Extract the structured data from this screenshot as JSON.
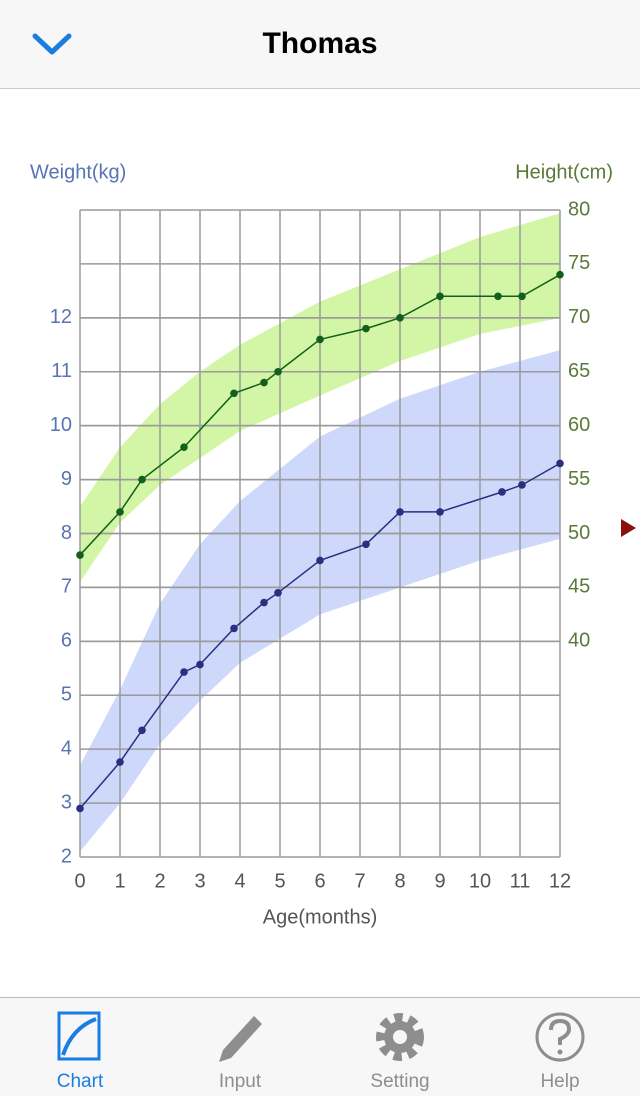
{
  "header": {
    "title": "Thomas"
  },
  "chart_data": {
    "type": "line",
    "xlabel": "Age(months)",
    "ylabel": "Weight(kg)",
    "y2label": "Height(cm)",
    "xlim": [
      0,
      12
    ],
    "xticks": [
      0,
      1,
      2,
      3,
      4,
      5,
      6,
      7,
      8,
      9,
      10,
      11,
      12
    ],
    "ylim": [
      2,
      14
    ],
    "yticks": [
      2,
      3,
      4,
      5,
      6,
      7,
      8,
      9,
      10,
      11,
      12
    ],
    "y2lim": [
      20,
      80
    ],
    "y2ticks": [
      40,
      45,
      50,
      55,
      60,
      65,
      70,
      75,
      80
    ],
    "grid": true,
    "bands": [
      {
        "axis": "y",
        "color": "#cdd8fb",
        "x": [
          0,
          1,
          2,
          3,
          4,
          6,
          8,
          10,
          12
        ],
        "upper": [
          3.7,
          5.1,
          6.7,
          7.8,
          8.6,
          9.8,
          10.5,
          11.0,
          11.4
        ],
        "lower": [
          2.1,
          3.0,
          4.1,
          4.9,
          5.6,
          6.5,
          7.0,
          7.5,
          7.9
        ]
      },
      {
        "axis": "y2",
        "color": "#d3f6a6",
        "x": [
          0,
          1,
          2,
          3,
          4,
          6,
          8,
          10,
          12
        ],
        "upper": [
          52.5,
          58,
          62,
          65,
          67.5,
          71.5,
          74.5,
          77.5,
          79.7
        ],
        "lower": [
          45.5,
          51,
          54.5,
          57,
          59.5,
          62.8,
          66,
          68.5,
          70
        ]
      }
    ],
    "series": [
      {
        "axis": "y",
        "color": "#2b2f80",
        "x": [
          0,
          1,
          1.55,
          2.6,
          3,
          3.85,
          4.6,
          4.95,
          6,
          7.15,
          8,
          9,
          10.55,
          11.05,
          12
        ],
        "values": [
          2.9,
          3.76,
          4.35,
          5.43,
          5.57,
          6.24,
          6.72,
          6.9,
          7.5,
          7.8,
          8.4,
          8.4,
          8.77,
          8.9,
          9.3
        ]
      },
      {
        "axis": "y2",
        "color": "#13601a",
        "x": [
          0,
          1,
          1.55,
          2.6,
          3.85,
          4.6,
          4.95,
          6,
          7.15,
          8,
          9,
          10.45,
          11.05,
          12
        ],
        "values": [
          48,
          52,
          55,
          58,
          63,
          64,
          65,
          68,
          69,
          70,
          72,
          72,
          72,
          74
        ]
      }
    ]
  },
  "tab_bar": {
    "items": [
      "Chart",
      "Input",
      "Setting",
      "Help"
    ]
  }
}
